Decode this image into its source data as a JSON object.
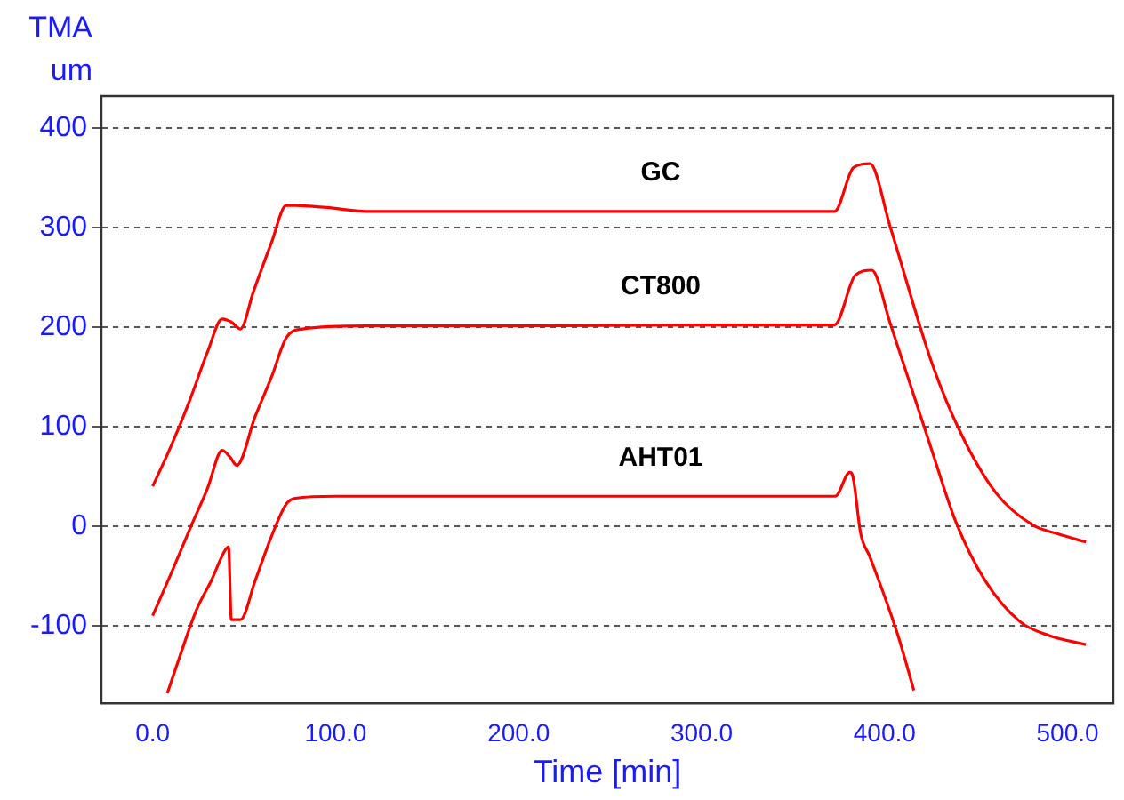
{
  "chart_data": {
    "type": "line",
    "xlabel": "Time [min]",
    "ylabel": "TMA\num",
    "xlim": [
      -28,
      525
    ],
    "ylim": [
      -178,
      432
    ],
    "xticks": [
      {
        "value": 0,
        "label": "0.0"
      },
      {
        "value": 100,
        "label": "100.0"
      },
      {
        "value": 200,
        "label": "200.0"
      },
      {
        "value": 300,
        "label": "300.0"
      },
      {
        "value": 400,
        "label": "400.0"
      },
      {
        "value": 500,
        "label": "500.0"
      }
    ],
    "yticks": [
      -100,
      0,
      100,
      200,
      300,
      400
    ],
    "grid": "y",
    "legend": false,
    "marker": "none",
    "line_style": "solid",
    "series": [
      {
        "name": "GC",
        "color": "#ff0000",
        "x": [
          0,
          10,
          20,
          30,
          38,
          43,
          48,
          55,
          65,
          73,
          78,
          95,
          117,
          200,
          300,
          372.6,
          383,
          392,
          403,
          426,
          442,
          461,
          481,
          495,
          510
        ],
        "values": [
          40,
          80,
          125,
          175,
          208,
          205,
          198,
          235,
          285,
          322,
          322,
          320,
          316,
          316,
          316,
          316,
          360,
          364,
          301,
          163,
          92,
          33,
          1,
          -8,
          -16
        ]
      },
      {
        "name": "CT800",
        "color": "#ff0000",
        "x": [
          0,
          10,
          21,
          30,
          38,
          42,
          46,
          56,
          65,
          73,
          82,
          117,
          200,
          300,
          372.6,
          384,
          393,
          403,
          426,
          439,
          455,
          474,
          490,
          510
        ],
        "values": [
          -90,
          -48,
          0,
          38,
          76,
          70,
          61,
          110,
          150,
          189,
          198,
          201,
          201,
          202,
          202,
          252,
          257,
          204,
          75,
          4,
          -55,
          -96,
          -110,
          -119
        ]
      },
      {
        "name": "AHT01",
        "color": "#ff0000",
        "x": [
          8,
          15,
          24,
          32,
          40,
          41.5,
          43,
          48,
          56,
          65,
          73,
          78,
          100,
          200,
          300,
          373,
          381,
          382.5,
          387,
          392,
          407,
          416
        ],
        "values": [
          -168,
          -130,
          -84,
          -55,
          -23,
          -21,
          -94,
          -94,
          -55,
          -10,
          22,
          28,
          30,
          30,
          30,
          30,
          54,
          51,
          -8,
          -31,
          -108,
          -165
        ]
      }
    ]
  }
}
